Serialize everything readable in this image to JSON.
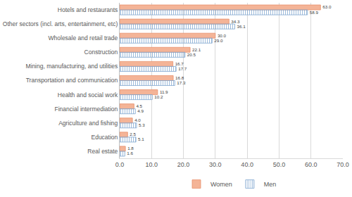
{
  "chart_data": {
    "type": "bar",
    "orientation": "horizontal",
    "categories": [
      "Hotels and restaurants",
      "Other sectors (incl. arts, entertainment, etc)",
      "Wholesale and retail trade",
      "Construction",
      "Mining, manufacturing, and utilities",
      "Transportation and communication",
      "Health and social work",
      "Financial intermediation",
      "Agriculture and fishing",
      "Education",
      "Real estate"
    ],
    "series": [
      {
        "name": "Women",
        "color": "#f4b497",
        "values": [
          63.0,
          34.3,
          30.0,
          22.1,
          16.7,
          16.8,
          11.9,
          4.5,
          4.0,
          2.5,
          1.8
        ],
        "value_labels": [
          "63.0",
          "34.3",
          "30.0",
          "22.1",
          "16.7",
          "16.8",
          "11.9",
          "4.5",
          "4.0",
          "2.5",
          "1.8"
        ]
      },
      {
        "name": "Men",
        "color": "#bcd3ea",
        "values": [
          58.9,
          36.1,
          29.0,
          20.5,
          17.7,
          17.3,
          10.2,
          4.9,
          5.3,
          5.1,
          1.6
        ],
        "value_labels": [
          "58.9",
          "36.1",
          "29.0",
          "20.5",
          "17.7",
          "17.3",
          "10.2",
          "4.9",
          "5.3",
          "5.1",
          "1.6"
        ]
      }
    ],
    "xlim": [
      0,
      70
    ],
    "xticks": [
      {
        "value": 0,
        "label": "0.0"
      },
      {
        "value": 10,
        "label": "10.0"
      },
      {
        "value": 20,
        "label": "20.0"
      },
      {
        "value": 30,
        "label": "30.0"
      },
      {
        "value": 40,
        "label": "40.0"
      },
      {
        "value": 50,
        "label": "50.0"
      },
      {
        "value": 60,
        "label": "60.0"
      },
      {
        "value": 70,
        "label": "70.0"
      }
    ],
    "grid": true,
    "legend": "bottom",
    "data_labels": true
  }
}
